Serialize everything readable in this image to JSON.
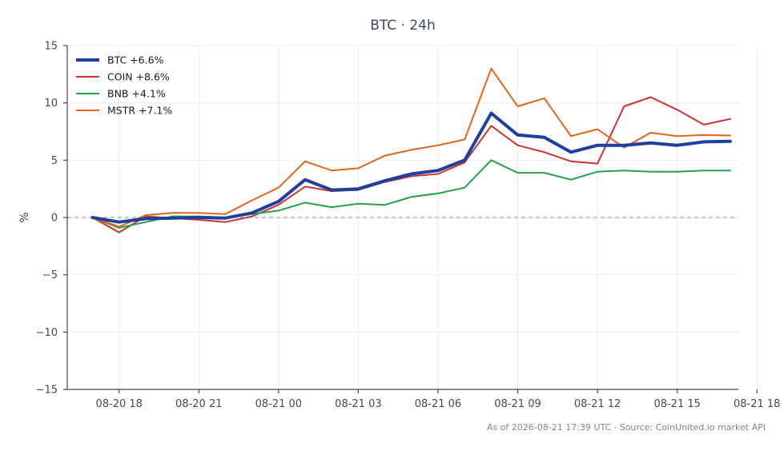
{
  "chart_data": {
    "type": "line",
    "title": "BTC · 24h",
    "xlabel": "",
    "ylabel": "%",
    "ylim": [
      -15,
      15
    ],
    "yticks": [
      15,
      10,
      5,
      0,
      -5,
      -10,
      -15
    ],
    "ytick_labels": [
      "15",
      "10",
      "5",
      "0",
      "−5",
      "−10",
      "−15"
    ],
    "xticks": [
      "08-20 18",
      "08-20 21",
      "08-21 00",
      "08-21 03",
      "08-21 06",
      "08-21 09",
      "08-21 12",
      "08-21 15",
      "08-21 18"
    ],
    "xlim_hours": [
      -0.95,
      24.3
    ],
    "x": [
      "08-20 17:00",
      "08-20 18:00",
      "08-20 19:00",
      "08-20 20:00",
      "08-20 21:00",
      "08-20 22:00",
      "08-20 23:00",
      "08-21 00:00",
      "08-21 01:00",
      "08-21 02:00",
      "08-21 03:00",
      "08-21 04:00",
      "08-21 05:00",
      "08-21 06:00",
      "08-21 07:00",
      "08-21 08:00",
      "08-21 09:00",
      "08-21 10:00",
      "08-21 11:00",
      "08-21 12:00",
      "08-21 13:00",
      "08-21 14:00",
      "08-21 15:00",
      "08-21 16:00",
      "08-21 17:00"
    ],
    "grid": true,
    "legend_position": "top-left",
    "reference_line": 0,
    "series": [
      {
        "name": "BTC +6.6%",
        "color": "#1f3f9c",
        "width": 4,
        "values": [
          0.0,
          -0.4,
          -0.1,
          -0.05,
          -0.0,
          -0.05,
          0.4,
          1.4,
          3.3,
          2.4,
          2.5,
          3.2,
          3.8,
          4.1,
          5.0,
          9.1,
          7.2,
          7.0,
          5.7,
          6.3,
          6.3,
          6.5,
          6.3,
          6.6,
          6.65
        ]
      },
      {
        "name": "COIN +8.6%",
        "color": "#cc3333",
        "width": 2,
        "values": [
          0.0,
          -1.3,
          0.1,
          -0.05,
          -0.2,
          -0.4,
          0.1,
          1.1,
          2.7,
          2.3,
          2.4,
          3.1,
          3.6,
          3.8,
          4.8,
          8.0,
          6.3,
          5.7,
          4.9,
          4.7,
          9.7,
          10.5,
          9.4,
          8.1,
          8.6
        ]
      },
      {
        "name": "BNB +4.1%",
        "color": "#22a04a",
        "width": 2,
        "values": [
          0.0,
          -0.9,
          -0.4,
          0.1,
          0.1,
          0.0,
          0.3,
          0.6,
          1.3,
          0.9,
          1.2,
          1.1,
          1.8,
          2.1,
          2.6,
          5.0,
          3.9,
          3.9,
          3.3,
          4.0,
          4.1,
          4.0,
          4.0,
          4.1,
          4.1
        ]
      },
      {
        "name": "MSTR +7.1%",
        "color": "#e0661c",
        "width": 2,
        "values": [
          0.0,
          -0.8,
          0.2,
          0.4,
          0.4,
          0.3,
          1.5,
          2.6,
          4.9,
          4.1,
          4.3,
          5.4,
          5.9,
          6.3,
          6.8,
          13.0,
          9.7,
          10.4,
          7.1,
          7.7,
          6.1,
          7.4,
          7.1,
          7.2,
          7.15
        ]
      }
    ]
  },
  "footer": "As of 2026-08-21 17:39 UTC · Source: CoinUnited.io market API"
}
